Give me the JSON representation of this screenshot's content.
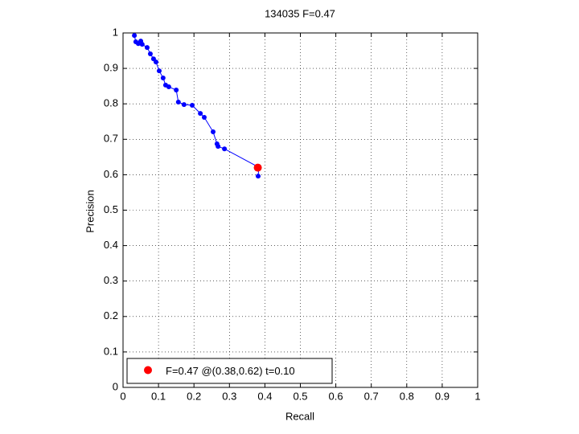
{
  "chart_data": {
    "type": "line",
    "title": "134035 F=0.47",
    "x_label": "Recall",
    "y_label": "Precision",
    "xlim": [
      0,
      1
    ],
    "ylim": [
      0,
      1
    ],
    "xticks": [
      0,
      0.1,
      0.2,
      0.3,
      0.4,
      0.5,
      0.6,
      0.7,
      0.8,
      0.9,
      1
    ],
    "yticks": [
      0,
      0.1,
      0.2,
      0.3,
      0.4,
      0.5,
      0.6,
      0.7,
      0.8,
      0.9,
      1
    ],
    "grid": true,
    "legend": "lower left",
    "series": [
      {
        "color": "#0000ff",
        "x": [
          0.032,
          0.036,
          0.043,
          0.05,
          0.054,
          0.068,
          0.077,
          0.086,
          0.093,
          0.102,
          0.113,
          0.12,
          0.129,
          0.15,
          0.156,
          0.172,
          0.195,
          0.218,
          0.229,
          0.254,
          0.265,
          0.268,
          0.286,
          0.383,
          0.381
        ],
        "values": [
          0.993,
          0.975,
          0.97,
          0.977,
          0.968,
          0.959,
          0.941,
          0.927,
          0.918,
          0.893,
          0.873,
          0.853,
          0.848,
          0.839,
          0.805,
          0.798,
          0.796,
          0.773,
          0.762,
          0.721,
          0.687,
          0.68,
          0.673,
          0.621,
          0.596
        ]
      },
      {
        "name": "F=0.47 @(0.38,0.62) t=0.10",
        "color": "#ff0000",
        "x": [
          0.38
        ],
        "values": [
          0.62
        ]
      }
    ]
  }
}
